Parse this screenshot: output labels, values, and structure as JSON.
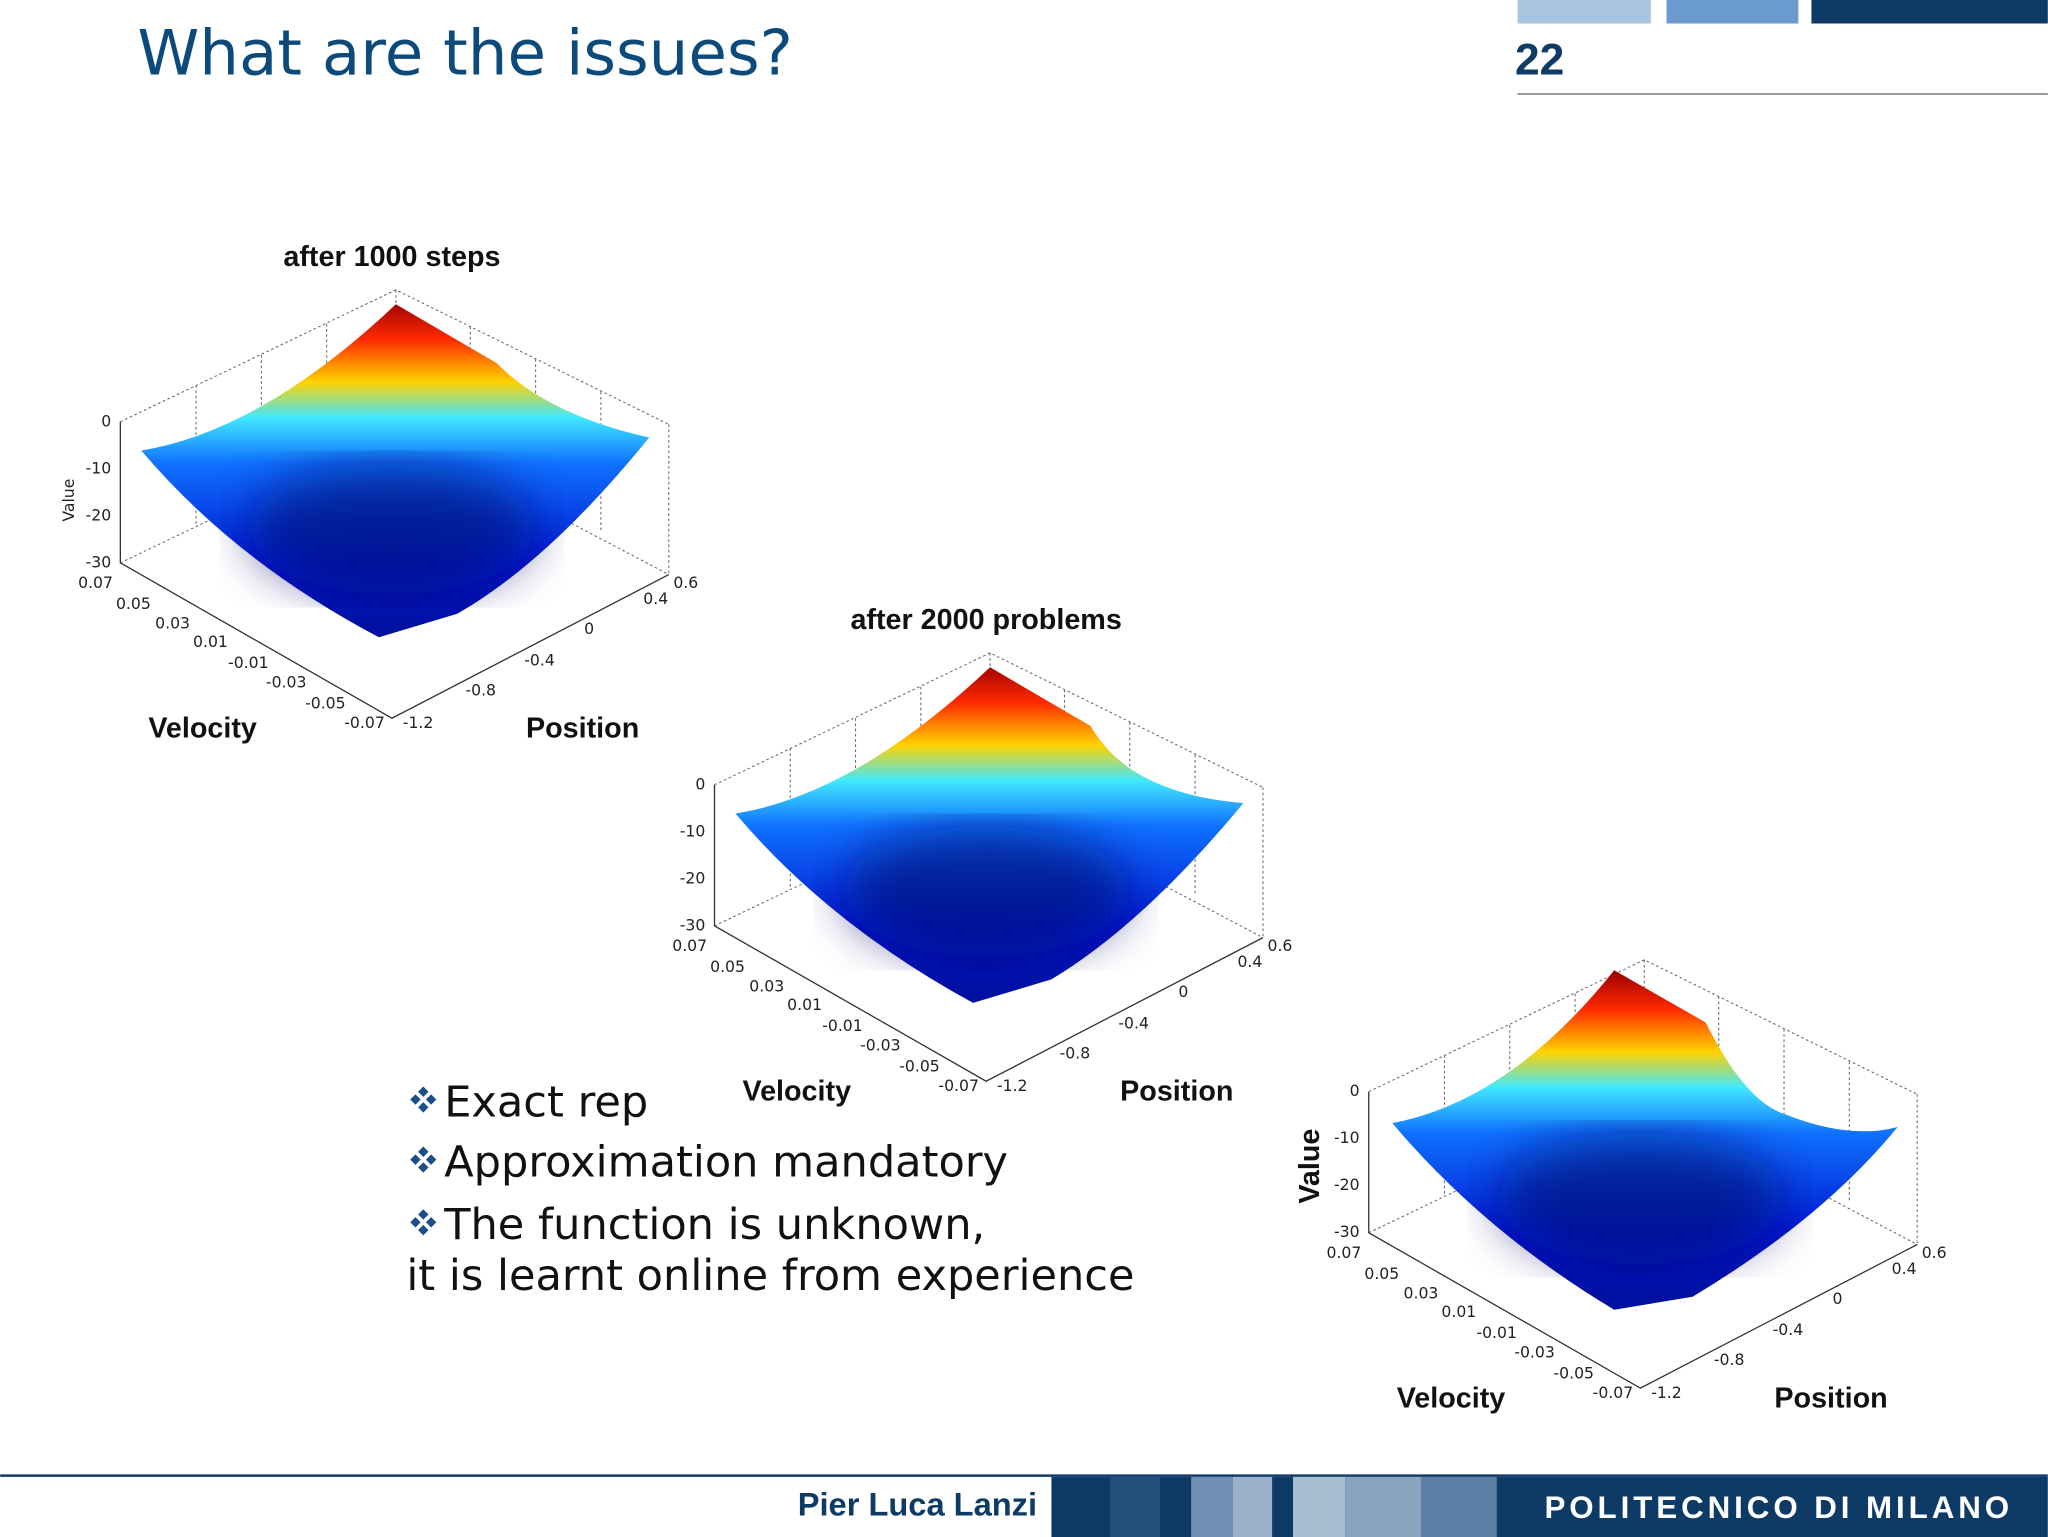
{
  "header": {
    "title": "What are the issues?",
    "page_number": "22"
  },
  "plots": [
    {
      "title": "after 1000 steps",
      "value_label": "Value",
      "x_label": "Velocity",
      "y_label": "Position",
      "value_ticks": [
        "0",
        "-10",
        "-20",
        "-30"
      ],
      "velocity_ticks": [
        "0.07",
        "0.05",
        "0.03",
        "0.01",
        "-0.01",
        "-0.03",
        "-0.05",
        "-0.07"
      ],
      "position_ticks": [
        "-1.2",
        "-0.8",
        "-0.4",
        "0",
        "0.4",
        "0.6"
      ]
    },
    {
      "title": "after 2000 problems",
      "x_label": "Velocity",
      "y_label": "Position",
      "value_ticks": [
        "0",
        "-10",
        "-20",
        "-30"
      ],
      "velocity_ticks": [
        "0.07",
        "0.05",
        "0.03",
        "0.01",
        "-0.01",
        "-0.03",
        "-0.05",
        "-0.07"
      ],
      "position_ticks": [
        "-1.2",
        "-0.8",
        "-0.4",
        "0",
        "0.4",
        "0.6"
      ]
    },
    {
      "value_label": "Value",
      "x_label": "Velocity",
      "y_label": "Position",
      "value_ticks": [
        "0",
        "-10",
        "-20",
        "-30"
      ],
      "velocity_ticks": [
        "0.07",
        "0.05",
        "0.03",
        "0.01",
        "-0.01",
        "-0.03",
        "-0.05",
        "-0.07"
      ],
      "position_ticks": [
        "-1.2",
        "-0.8",
        "-0.4",
        "0",
        "0.4",
        "0.6"
      ]
    }
  ],
  "bullets": [
    "Exact rep",
    "Approximation mandatory",
    "The function is unknown,"
  ],
  "continuation": "it is learnt online from experience",
  "footer": {
    "author": "Pier Luca Lanzi",
    "institution": "POLITECNICO DI MILANO"
  }
}
